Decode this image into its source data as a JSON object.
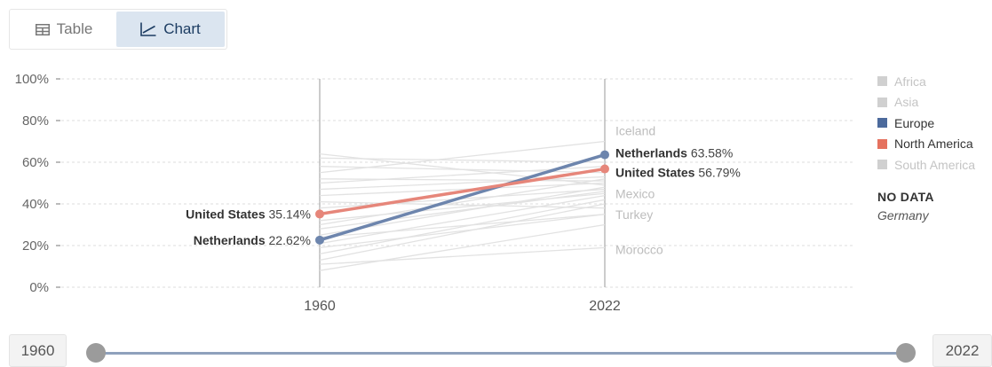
{
  "tabs": [
    {
      "label": "Table",
      "icon": "table-icon",
      "active": false
    },
    {
      "label": "Chart",
      "icon": "line-chart-icon",
      "active": true
    }
  ],
  "chart_data": {
    "type": "line",
    "title": "",
    "xlabel": "",
    "ylabel": "",
    "x": [
      1960,
      2022
    ],
    "x_tick_labels": [
      "1960",
      "2022"
    ],
    "ylim": [
      0,
      100
    ],
    "y_ticks": [
      0,
      20,
      40,
      60,
      80,
      100
    ],
    "y_tick_labels": [
      "0%",
      "20%",
      "40%",
      "60%",
      "80%",
      "100%"
    ],
    "grid": "horizontal dashed",
    "legend_position": "right",
    "highlighted_series": [
      {
        "name": "Netherlands",
        "group": "Europe",
        "values": [
          22.62,
          63.58
        ],
        "value_labels": [
          "22.62%",
          "63.58%"
        ],
        "color": "#6d85ad"
      },
      {
        "name": "United States",
        "group": "North America",
        "values": [
          35.14,
          56.79
        ],
        "value_labels": [
          "35.14%",
          "56.79%"
        ],
        "color": "#e6867a"
      }
    ],
    "background_series": [
      {
        "name": "Iceland",
        "values": [
          55,
          70
        ]
      },
      {
        "name": "Mexico",
        "values": [
          32,
          45
        ]
      },
      {
        "name": "Turkey",
        "values": [
          19,
          35
        ]
      },
      {
        "name": "Morocco",
        "values": [
          11,
          19
        ]
      },
      {
        "values": [
          64,
          49
        ]
      },
      {
        "values": [
          58,
          55
        ]
      },
      {
        "values": [
          52,
          51
        ]
      },
      {
        "values": [
          47,
          53
        ]
      },
      {
        "values": [
          44,
          50
        ]
      },
      {
        "values": [
          41,
          38
        ]
      },
      {
        "values": [
          38,
          47
        ]
      },
      {
        "values": [
          28,
          46
        ]
      },
      {
        "values": [
          25,
          48
        ]
      },
      {
        "values": [
          21,
          44
        ]
      },
      {
        "values": [
          16,
          42
        ]
      },
      {
        "values": [
          13,
          40
        ]
      },
      {
        "values": [
          8,
          30
        ]
      },
      {
        "values": [
          30,
          52
        ]
      },
      {
        "values": [
          50,
          58
        ]
      },
      {
        "values": [
          62,
          60
        ]
      },
      {
        "values": [
          24,
          35
        ]
      }
    ],
    "end_labels": [
      "Iceland",
      "Mexico",
      "Turkey",
      "Morocco"
    ],
    "legend": [
      {
        "label": "Africa",
        "color": "#d0d0d0",
        "active": false
      },
      {
        "label": "Asia",
        "color": "#d0d0d0",
        "active": false
      },
      {
        "label": "Europe",
        "color": "#4c6a9c",
        "active": true
      },
      {
        "label": "North America",
        "color": "#e5725f",
        "active": true
      },
      {
        "label": "South America",
        "color": "#d0d0d0",
        "active": false
      }
    ],
    "no_data": {
      "title": "NO DATA",
      "items": [
        "Germany"
      ]
    }
  },
  "timeline": {
    "start": "1960",
    "end": "2022"
  }
}
